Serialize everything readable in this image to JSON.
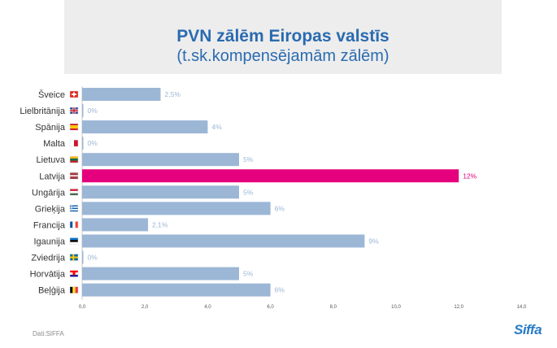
{
  "title": "PVN zālēm Eiropas valstīs",
  "subtitle": "(t.sk.kompensējamām zālēm)",
  "source": "Dati:SIFFA",
  "logo": "Siffa",
  "colors": {
    "bar": "#9cb6d6",
    "highlight": "#e5007d",
    "label": "#9cb6d6",
    "axis": "#555555",
    "title": "#2a6bb0"
  },
  "chart_data": {
    "type": "bar",
    "orientation": "horizontal",
    "categories": [
      "Šveice",
      "Lielbritānija",
      "Spānija",
      "Malta",
      "Lietuva",
      "Latvija",
      "Ungārija",
      "Grieķija",
      "Francija",
      "Igaunija",
      "Zviedrija",
      "Horvātija",
      "Beļģija"
    ],
    "values": [
      2.5,
      0,
      4,
      0,
      5,
      12,
      5,
      6,
      2.1,
      9,
      0,
      5,
      6
    ],
    "data_labels": [
      "2,5%",
      "0%",
      "4%",
      "0%",
      "5%",
      "12%",
      "5%",
      "6%",
      "2,1%",
      "9%",
      "0%",
      "5%",
      "6%"
    ],
    "flags": [
      "ch-flag",
      "gb-flag",
      "es-flag",
      "mt-flag",
      "lt-flag",
      "lv-flag",
      "hu-flag",
      "gr-flag",
      "fr-flag",
      "ee-flag",
      "se-flag",
      "hr-flag",
      "be-flag"
    ],
    "highlight_index": 5,
    "xlim": [
      0,
      14
    ],
    "x_ticks": [
      0,
      2,
      4,
      6,
      8,
      10,
      12,
      14
    ],
    "x_tick_labels": [
      "0,0",
      "2,0",
      "4,0",
      "6,0",
      "8,0",
      "10,0",
      "12,0",
      "14,0"
    ],
    "grid": false,
    "legend": "none"
  }
}
